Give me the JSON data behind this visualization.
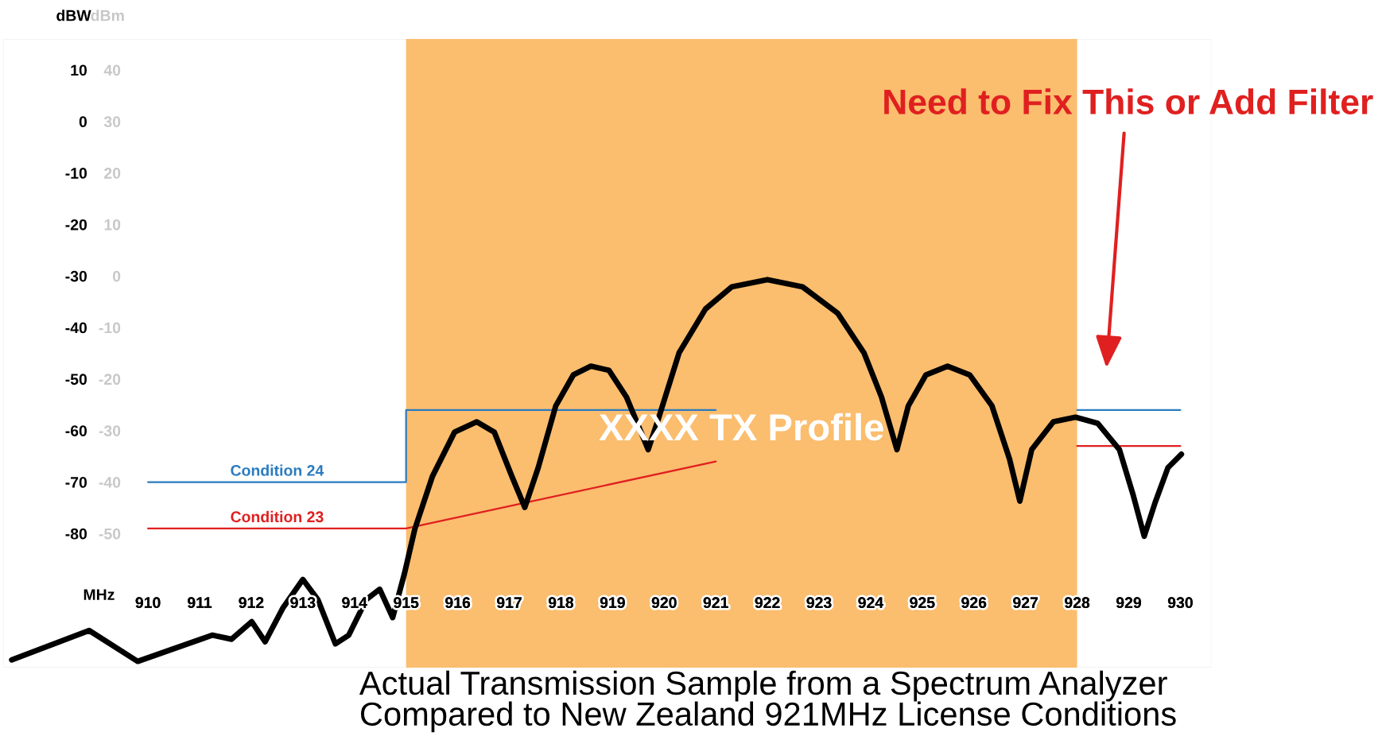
{
  "chart_data": {
    "type": "line",
    "xlabel": "MHz",
    "ylabel": "dBW",
    "y2label": "dBm",
    "xlim": [
      907.2,
      930.6
    ],
    "ylim": [
      -106,
      16
    ],
    "y2lim": [
      -76,
      46
    ],
    "xticks": [
      910,
      911,
      912,
      913,
      914,
      915,
      916,
      917,
      918,
      919,
      920,
      921,
      922,
      923,
      924,
      925,
      926,
      927,
      928,
      929,
      930
    ],
    "yticks": [
      -80,
      -70,
      -60,
      -50,
      -40,
      -30,
      -20,
      -10,
      0,
      10
    ],
    "y2ticks": [
      -50,
      -40,
      -30,
      -20,
      -10,
      0,
      10,
      20,
      30,
      40
    ],
    "grid": false,
    "legend": false,
    "marker": "none",
    "line_style": "solid",
    "bands": [
      {
        "axis": "x",
        "from": 915,
        "to": 928,
        "label": "XXXX TX Profile",
        "color": "#fbbd6e"
      }
    ],
    "series": [
      {
        "color": "#000000",
        "x": [
          907.36,
          908.86,
          909.8,
          911.25,
          911.62,
          912.01,
          912.27,
          912.61,
          913.0,
          913.29,
          913.63,
          913.89,
          914.23,
          914.49,
          914.74,
          914.97,
          915.17,
          915.51,
          915.94,
          916.37,
          916.71,
          917.05,
          917.3,
          917.56,
          917.9,
          918.24,
          918.58,
          918.93,
          919.27,
          919.69,
          919.86,
          920.29,
          920.8,
          921.31,
          922.0,
          922.68,
          923.36,
          923.87,
          924.21,
          924.51,
          924.73,
          925.07,
          925.49,
          925.92,
          926.35,
          926.69,
          926.89,
          927.12,
          927.54,
          927.97,
          928.4,
          928.82,
          929.08,
          929.3,
          929.51,
          929.76,
          930.02
        ],
        "values": [
          -104.5,
          -98.8,
          -104.8,
          -99.7,
          -100.5,
          -97.1,
          -101.0,
          -94.5,
          -88.9,
          -92.8,
          -101.4,
          -99.7,
          -92.8,
          -90.8,
          -96.3,
          -87.7,
          -79.1,
          -68.9,
          -60.3,
          -58.3,
          -60.3,
          -68.9,
          -74.9,
          -67.2,
          -55.2,
          -49.2,
          -47.5,
          -48.3,
          -53.5,
          -63.7,
          -58.6,
          -44.9,
          -36.4,
          -32.1,
          -30.7,
          -32.1,
          -37.2,
          -44.9,
          -53.5,
          -63.7,
          -55.2,
          -49.2,
          -47.5,
          -49.2,
          -55.2,
          -65.5,
          -73.7,
          -63.7,
          -58.3,
          -57.4,
          -58.6,
          -63.7,
          -72.3,
          -80.5,
          -74.0,
          -67.2,
          -64.6
        ]
      },
      {
        "name": "Condition 24",
        "color": "#2a7bbf",
        "x": [
          910,
          915,
          915,
          921,
          924,
          928,
          930
        ],
        "values": [
          -70,
          -70,
          -56,
          -56,
          null,
          -56,
          -56
        ]
      },
      {
        "name": "Condition 23",
        "color": "#e02020",
        "x": [
          910,
          915,
          921,
          924,
          928,
          930
        ],
        "values": [
          -79,
          -79,
          -66,
          null,
          -63,
          -63
        ]
      }
    ],
    "annotations": [
      "Need to Fix This or Add Filter",
      "Actual Transmission Sample from a Spectrum Analyzer\nCompared to New Zealand 921MHz License Conditions"
    ]
  }
}
